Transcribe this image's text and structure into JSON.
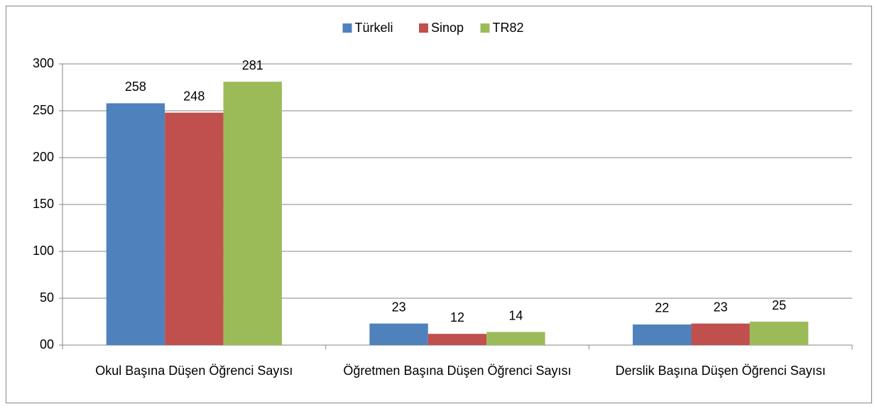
{
  "chart_data": {
    "type": "bar",
    "categories": [
      "Okul Başına Düşen Öğrenci Sayısı",
      "Öğretmen Başına Düşen Öğrenci Sayısı",
      "Derslik Başına Düşen Öğrenci Sayısı"
    ],
    "series": [
      {
        "name": "Türkeli",
        "color": "#4f81bd",
        "values": [
          258,
          23,
          22
        ]
      },
      {
        "name": "Sinop",
        "color": "#c0504d",
        "values": [
          248,
          12,
          23
        ]
      },
      {
        "name": "TR82",
        "color": "#9bbb59",
        "values": [
          281,
          14,
          25
        ]
      }
    ],
    "ylim": [
      0,
      300
    ],
    "yticks": [
      {
        "value": 0,
        "label": "00"
      },
      50,
      100,
      150,
      200,
      250,
      300
    ],
    "grid": true,
    "legend": "top"
  }
}
